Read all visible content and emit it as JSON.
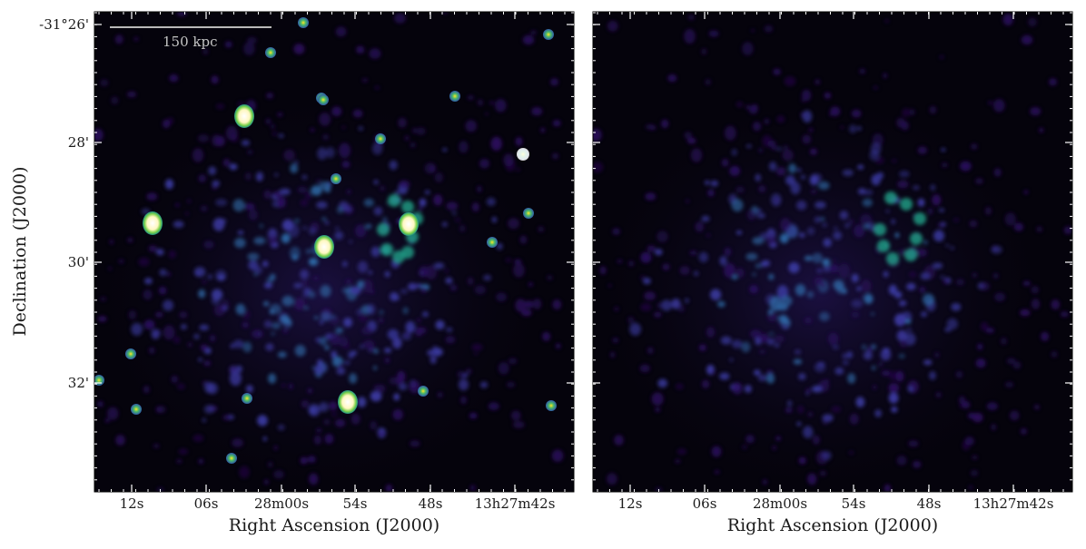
{
  "figure": {
    "ytick_labels": [
      "-31°26'",
      "28'",
      "30'",
      "32'"
    ],
    "xtick_labels": [
      "12s",
      "06s",
      "28m00s",
      "54s",
      "48s",
      "13h27m42s"
    ],
    "xlabel": "Right Ascension (J2000)",
    "ylabel": "Declination (J2000)",
    "scalebar_label": "150 kpc",
    "colormap": [
      "#05030c",
      "#2a0d5c",
      "#3b3aa0",
      "#2f6aa8",
      "#22a38a",
      "#7bd24a",
      "#fde725",
      "#ffffff"
    ]
  }
}
